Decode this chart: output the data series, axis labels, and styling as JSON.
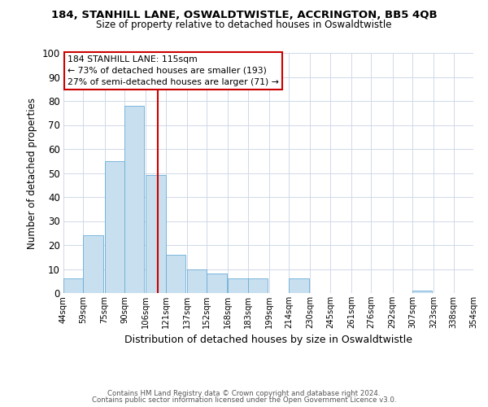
{
  "title": "184, STANHILL LANE, OSWALDTWISTLE, ACCRINGTON, BB5 4QB",
  "subtitle": "Size of property relative to detached houses in Oswaldtwistle",
  "xlabel": "Distribution of detached houses by size in Oswaldtwistle",
  "ylabel": "Number of detached properties",
  "bar_color": "#c8dff0",
  "bar_edge_color": "#6aaed6",
  "bar_left_edges": [
    44,
    59,
    75,
    90,
    106,
    121,
    137,
    152,
    168,
    183,
    199,
    214,
    230,
    245,
    261,
    276,
    292,
    307,
    323,
    338
  ],
  "bar_heights": [
    6,
    24,
    55,
    78,
    49,
    16,
    10,
    8,
    6,
    6,
    0,
    6,
    0,
    0,
    0,
    0,
    0,
    1,
    0,
    0
  ],
  "bin_width": 15,
  "x_tick_labels": [
    "44sqm",
    "59sqm",
    "75sqm",
    "90sqm",
    "106sqm",
    "121sqm",
    "137sqm",
    "152sqm",
    "168sqm",
    "183sqm",
    "199sqm",
    "214sqm",
    "230sqm",
    "245sqm",
    "261sqm",
    "276sqm",
    "292sqm",
    "307sqm",
    "323sqm",
    "338sqm",
    "354sqm"
  ],
  "ylim": [
    0,
    100
  ],
  "yticks": [
    0,
    10,
    20,
    30,
    40,
    50,
    60,
    70,
    80,
    90,
    100
  ],
  "vline_x": 115,
  "vline_color": "#cc0000",
  "annotation_title": "184 STANHILL LANE: 115sqm",
  "annotation_line1": "← 73% of detached houses are smaller (193)",
  "annotation_line2": "27% of semi-detached houses are larger (71) →",
  "footer_line1": "Contains HM Land Registry data © Crown copyright and database right 2024.",
  "footer_line2": "Contains public sector information licensed under the Open Government Licence v3.0.",
  "background_color": "#ffffff",
  "grid_color": "#d0d8e8"
}
